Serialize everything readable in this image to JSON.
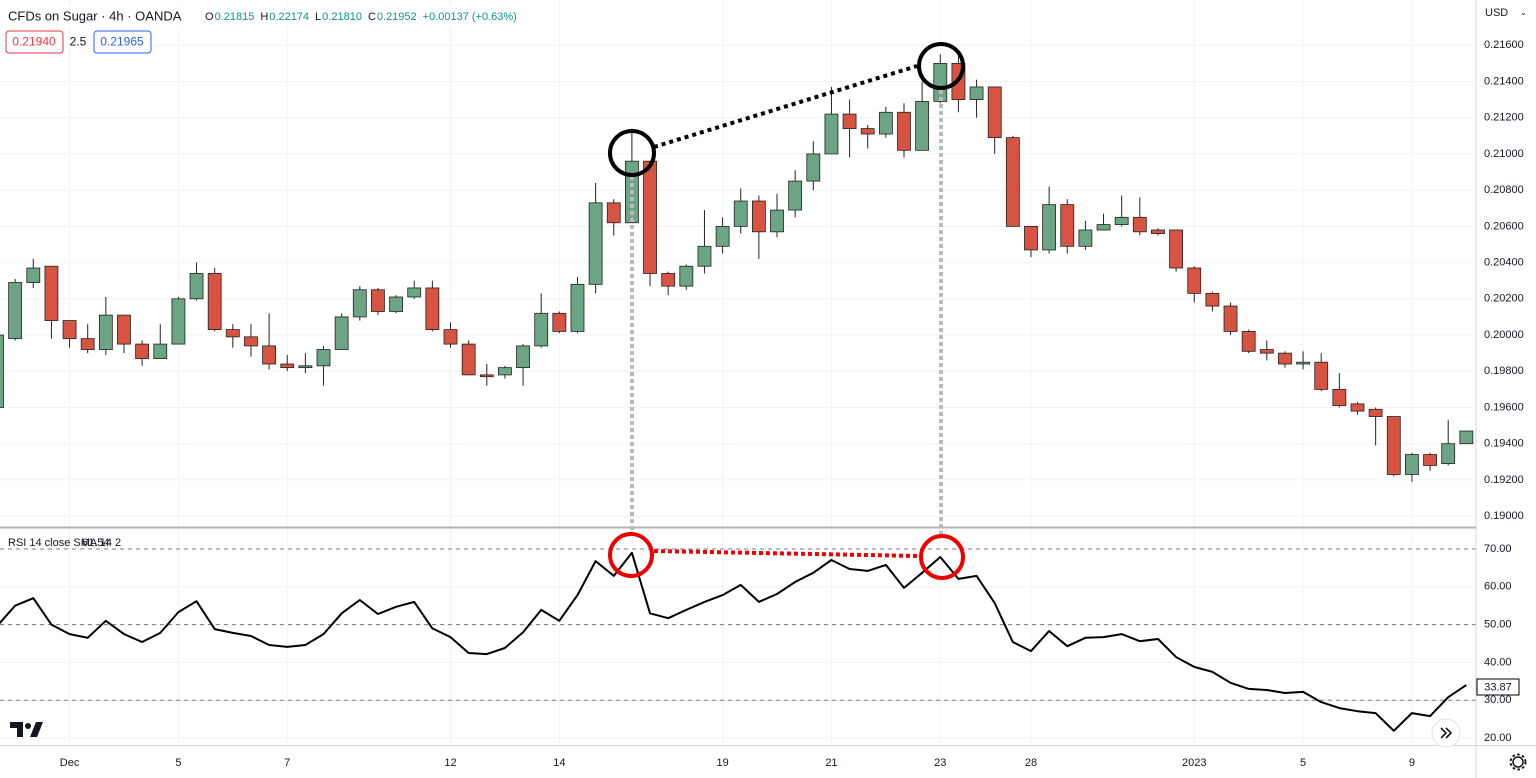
{
  "header": {
    "symbol": "CFDs on Sugar · 4h · OANDA",
    "ohlc": [
      {
        "key": "O",
        "value": "0.21815"
      },
      {
        "key": "H",
        "value": "0.22174"
      },
      {
        "key": "L",
        "value": "0.21810"
      },
      {
        "key": "C",
        "value": "0.21952"
      }
    ],
    "change": "+0.00137 (+0.63%)",
    "bid": "0.21940",
    "spread": "2.5",
    "ask": "0.21965",
    "currency": "USD"
  },
  "chart_data": [
    {
      "type": "candlestick",
      "categories": [
        null,
        null,
        null,
        null,
        "Dec",
        null,
        null,
        null,
        null,
        null,
        "5",
        null,
        null,
        null,
        null,
        null,
        "7",
        null,
        null,
        null,
        null,
        null,
        null,
        null,
        null,
        "12",
        null,
        null,
        null,
        null,
        null,
        "14",
        null,
        null,
        null,
        null,
        null,
        null,
        null,
        null,
        "19",
        null,
        null,
        null,
        null,
        null,
        "21",
        null,
        null,
        null,
        null,
        null,
        "23",
        null,
        null,
        null,
        null,
        "28",
        null,
        null,
        null,
        null,
        null,
        null,
        null,
        null,
        "2023",
        null,
        null,
        null,
        null,
        null,
        "5",
        null,
        null,
        null,
        null,
        null,
        "9",
        null,
        null,
        null
      ],
      "open": [
        0.196,
        0.1998,
        0.2029,
        0.2038,
        0.2008,
        0.1998,
        0.1992,
        0.2011,
        0.1995,
        0.1987,
        0.1995,
        0.202,
        0.2034,
        0.2003,
        0.1999,
        0.1994,
        0.1984,
        0.1982,
        0.1983,
        0.1992,
        0.201,
        0.2025,
        0.2013,
        0.2021,
        0.2026,
        0.2003,
        0.1995,
        0.1978,
        0.1978,
        0.1982,
        0.1994,
        0.2012,
        0.2002,
        0.2028,
        0.2073,
        0.2062,
        0.2096,
        0.2034,
        0.2027,
        0.2038,
        0.2049,
        0.206,
        0.2074,
        0.2057,
        0.2069,
        0.2085,
        0.21,
        0.2122,
        0.2114,
        0.2111,
        0.2123,
        0.2102,
        0.2129,
        0.215,
        0.213,
        0.2137,
        0.2109,
        0.206,
        0.2047,
        0.2072,
        0.2049,
        0.2058,
        0.2061,
        0.2065,
        0.2058,
        0.2058,
        0.2037,
        0.2023,
        0.2016,
        0.2002,
        0.1992,
        0.199,
        0.1984,
        0.1985,
        0.197,
        0.1962,
        0.1959,
        0.1955,
        0.1923,
        0.1934,
        0.1929,
        0.194
      ],
      "high": [
        0.2003,
        0.2031,
        0.2042,
        0.2038,
        0.2008,
        0.2006,
        0.2021,
        0.2011,
        0.1997,
        0.2006,
        0.2021,
        0.204,
        0.2037,
        0.2006,
        0.2006,
        0.2012,
        0.1989,
        0.199,
        0.1994,
        0.2012,
        0.2027,
        0.2026,
        0.2022,
        0.203,
        0.203,
        0.2007,
        0.1997,
        0.1984,
        0.1983,
        0.1995,
        0.2023,
        0.2013,
        0.2032,
        0.2084,
        0.2075,
        0.2114,
        0.2096,
        0.2035,
        0.2039,
        0.2069,
        0.2065,
        0.2081,
        0.2077,
        0.2078,
        0.2091,
        0.2107,
        0.2137,
        0.213,
        0.2116,
        0.2126,
        0.2128,
        0.214,
        0.2155,
        0.2155,
        0.2141,
        0.2137,
        0.211,
        0.206,
        0.2082,
        0.2075,
        0.2063,
        0.2067,
        0.2077,
        0.2076,
        0.2059,
        0.2058,
        0.2038,
        0.2024,
        0.2018,
        0.2003,
        0.1997,
        0.1991,
        0.1991,
        0.199,
        0.1979,
        0.1963,
        0.196,
        0.1955,
        0.1935,
        0.1935,
        0.1953,
        0.1947
      ],
      "low": [
        0.1958,
        0.1997,
        0.2026,
        0.1998,
        0.1993,
        0.199,
        0.1989,
        0.199,
        0.1983,
        0.1987,
        0.1995,
        0.2019,
        0.2002,
        0.1993,
        0.1988,
        0.1981,
        0.198,
        0.1979,
        0.1972,
        0.1992,
        0.2008,
        0.2011,
        0.2012,
        0.202,
        0.2002,
        0.1993,
        0.1978,
        0.1972,
        0.1976,
        0.1972,
        0.1993,
        0.2001,
        0.2001,
        0.2023,
        0.2055,
        0.2062,
        0.2027,
        0.2022,
        0.2025,
        0.2034,
        0.2045,
        0.2056,
        0.2042,
        0.2054,
        0.2065,
        0.208,
        0.21,
        0.2098,
        0.2103,
        0.2109,
        0.2098,
        0.2102,
        0.2128,
        0.2123,
        0.212,
        0.21,
        0.206,
        0.2043,
        0.2045,
        0.2045,
        0.2047,
        0.2058,
        0.206,
        0.2055,
        0.2055,
        0.2035,
        0.2018,
        0.2013,
        0.2,
        0.199,
        0.1986,
        0.1982,
        0.1981,
        0.1969,
        0.196,
        0.1956,
        0.1939,
        0.1922,
        0.1919,
        0.1925,
        0.1928,
        0.194
      ],
      "close": [
        0.2,
        0.2029,
        0.2037,
        0.2008,
        0.1998,
        0.1992,
        0.2011,
        0.1995,
        0.1987,
        0.1995,
        0.202,
        0.2034,
        0.2003,
        0.1999,
        0.1994,
        0.1984,
        0.1982,
        0.1983,
        0.1992,
        0.201,
        0.2025,
        0.2013,
        0.2021,
        0.2026,
        0.2003,
        0.1995,
        0.1978,
        0.1977,
        0.1982,
        0.1994,
        0.2012,
        0.2002,
        0.2028,
        0.2073,
        0.2062,
        0.2096,
        0.2034,
        0.2027,
        0.2038,
        0.2049,
        0.206,
        0.2074,
        0.2057,
        0.2069,
        0.2085,
        0.21,
        0.2122,
        0.2114,
        0.2111,
        0.2123,
        0.2102,
        0.2129,
        0.215,
        0.213,
        0.2137,
        0.2109,
        0.206,
        0.2047,
        0.2072,
        0.2049,
        0.2058,
        0.2061,
        0.2065,
        0.2057,
        0.2056,
        0.2037,
        0.2023,
        0.2016,
        0.2002,
        0.1991,
        0.199,
        0.1984,
        0.1985,
        0.197,
        0.1961,
        0.1958,
        0.1955,
        0.1923,
        0.1934,
        0.1928,
        0.194,
        0.1947
      ],
      "up_color": "#6ba583",
      "down_color": "#d75442",
      "wick_color": "#222222",
      "ylim": [
        0.1894,
        0.2185
      ],
      "yticks": [
        {
          "value": 0.216,
          "label": "0.21600"
        },
        {
          "value": 0.214,
          "label": "0.21400"
        },
        {
          "value": 0.212,
          "label": "0.21200"
        },
        {
          "value": 0.21,
          "label": "0.21000"
        },
        {
          "value": 0.208,
          "label": "0.20800"
        },
        {
          "value": 0.206,
          "label": "0.20600"
        },
        {
          "value": 0.204,
          "label": "0.20400"
        },
        {
          "value": 0.202,
          "label": "0.20200"
        },
        {
          "value": 0.2,
          "label": "0.20000"
        },
        {
          "value": 0.198,
          "label": "0.19800"
        },
        {
          "value": 0.196,
          "label": "0.19600"
        },
        {
          "value": 0.194,
          "label": "0.19400"
        },
        {
          "value": 0.192,
          "label": "0.19200"
        },
        {
          "value": 0.19,
          "label": "0.19000"
        }
      ],
      "grid": true
    },
    {
      "type": "line",
      "title": "RSI 14 close SMA 14 2",
      "current": "61.54",
      "values": [
        49.6,
        55,
        57,
        50,
        47.5,
        46.5,
        51,
        47.5,
        45.4,
        47.8,
        53.3,
        56.2,
        48.8,
        47.8,
        47,
        44.6,
        44.1,
        44.6,
        47.5,
        53,
        56.5,
        52.8,
        54.7,
        56,
        49,
        46.7,
        42.5,
        42.2,
        43.8,
        48,
        53.9,
        51,
        57.8,
        66.8,
        62.9,
        69,
        53,
        51.7,
        53.9,
        56,
        57.8,
        60.5,
        56,
        58.1,
        61.3,
        63.7,
        67.1,
        64.7,
        64.2,
        65.8,
        59.7,
        63.7,
        67.9,
        62.1,
        62.9,
        55.7,
        45.4,
        43,
        48.3,
        44.3,
        46.5,
        46.7,
        47.5,
        45.6,
        46.2,
        41.4,
        38.8,
        37.5,
        34.6,
        33,
        32.7,
        31.9,
        32.2,
        29.5,
        27.9,
        27.1,
        26.6,
        21.9,
        26.6,
        25.8,
        30.8,
        34
      ],
      "color": "#000000",
      "last_value": "33.87",
      "hlines": [
        70,
        50,
        30
      ],
      "ylim": [
        18.15,
        75.56
      ],
      "yticks": [
        {
          "value": 70,
          "label": "70.00"
        },
        {
          "value": 60,
          "label": "60.00"
        },
        {
          "value": 50,
          "label": "50.00"
        },
        {
          "value": 40,
          "label": "40.00"
        },
        {
          "value": 30,
          "label": "30.00"
        },
        {
          "value": 20,
          "label": "20.00"
        }
      ],
      "grid": true
    }
  ]
}
